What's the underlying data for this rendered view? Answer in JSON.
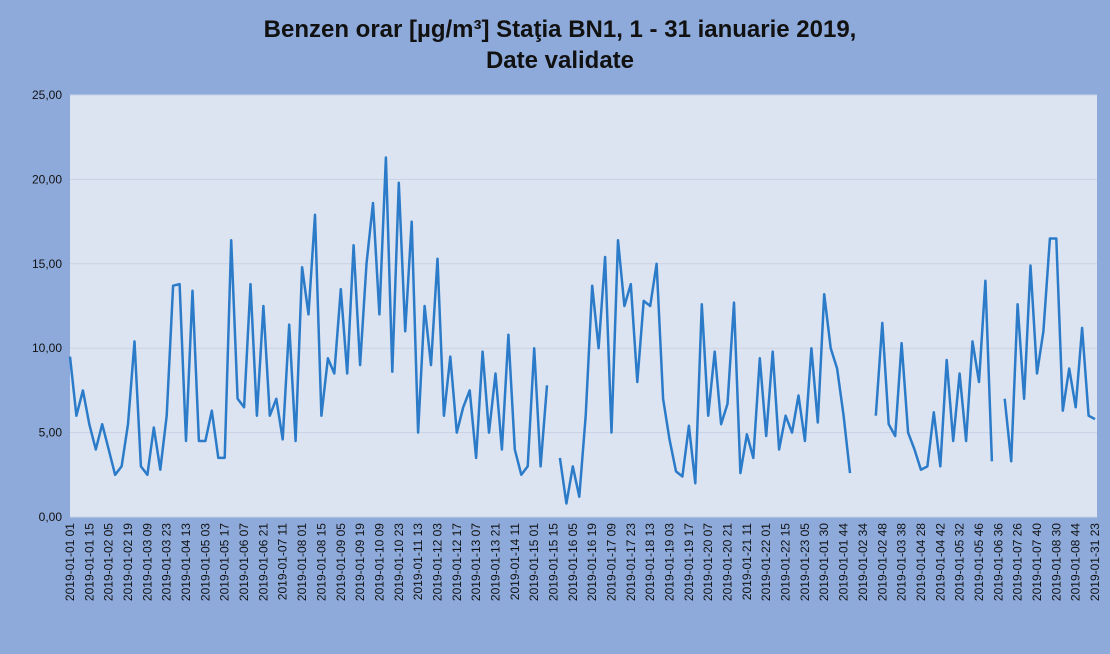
{
  "chart_data": {
    "type": "line",
    "title": [
      "Benzen orar [µg/m³]  Staţia BN1, 1 - 31 ianuarie 2019,",
      "Date validate"
    ],
    "categories": [
      "2019-01-01 01",
      null,
      null,
      "2019-01-01 15",
      null,
      null,
      "2019-01-02 05",
      null,
      null,
      "2019-01-02 19",
      null,
      null,
      "2019-01-03 09",
      null,
      null,
      "2019-01-03 23",
      null,
      null,
      "2019-01-04 13",
      null,
      null,
      "2019-01-05 03",
      null,
      null,
      "2019-01-05 17",
      null,
      null,
      "2019-01-06 07",
      null,
      null,
      "2019-01-06 21",
      null,
      null,
      "2019-01-07 11",
      null,
      null,
      "2019-01-08 01",
      null,
      null,
      "2019-01-08 15",
      null,
      null,
      "2019-01-09 05",
      null,
      null,
      "2019-01-09 19",
      null,
      null,
      "2019-01-10 09",
      null,
      null,
      "2019-01-10 23",
      null,
      null,
      "2019-01-11 13",
      null,
      null,
      "2019-01-12 03",
      null,
      null,
      "2019-01-12 17",
      null,
      null,
      "2019-01-13 07",
      null,
      null,
      "2019-01-13 21",
      null,
      null,
      "2019-01-14 11",
      null,
      null,
      "2019-01-15 01",
      null,
      null,
      "2019-01-15 15",
      null,
      null,
      "2019-01-16 05",
      null,
      null,
      "2019-01-16 19",
      null,
      null,
      "2019-01-17 09",
      null,
      null,
      "2019-01-17 23",
      null,
      null,
      "2019-01-18 13",
      null,
      null,
      "2019-01-19 03",
      null,
      null,
      "2019-01-19 17",
      null,
      null,
      "2019-01-20 07",
      null,
      null,
      "2019-01-20 21",
      null,
      null,
      "2019-01-21 11",
      null,
      null,
      "2019-01-22 01",
      null,
      null,
      "2019-01-22 15",
      null,
      null,
      "2019-01-23 05",
      null,
      null,
      "2019-01-01 30",
      null,
      null,
      "2019-01-01 44",
      null,
      null,
      "2019-01-02 34",
      null,
      null,
      "2019-01-02 48",
      null,
      null,
      "2019-01-03 38",
      null,
      null,
      "2019-01-04 28",
      null,
      null,
      "2019-01-04 42",
      null,
      null,
      "2019-01-05 32",
      null,
      null,
      "2019-01-05 46",
      null,
      null,
      "2019-01-06 36",
      null,
      null,
      "2019-01-07 26",
      null,
      null,
      "2019-01-07 40",
      null,
      null,
      "2019-01-08 30",
      null,
      null,
      "2019-01-08 44",
      null,
      null,
      "2019-01-31 23"
    ],
    "values": [
      9.5,
      6,
      7.5,
      5.5,
      4,
      5.5,
      4,
      2.5,
      3,
      5.5,
      10.4,
      3,
      2.5,
      5.3,
      2.8,
      6,
      13.7,
      13.8,
      4.5,
      13.4,
      4.5,
      4.5,
      6.3,
      3.5,
      3.5,
      16.4,
      7,
      6.5,
      13.8,
      6,
      12.5,
      6,
      7,
      4.6,
      11.4,
      4.5,
      14.8,
      12,
      17.9,
      6,
      9.4,
      8.5,
      13.5,
      8.5,
      16.1,
      9,
      15,
      18.6,
      12,
      21.3,
      8.6,
      19.8,
      11,
      17.5,
      5,
      12.5,
      9,
      15.3,
      6,
      9.5,
      5,
      6.5,
      7.5,
      3.5,
      9.8,
      5,
      8.5,
      4,
      10.8,
      4,
      2.5,
      3,
      10,
      3,
      7.8,
      null,
      3.5,
      0.8,
      3,
      1.2,
      6,
      13.7,
      10,
      15.4,
      5,
      16.4,
      12.5,
      13.8,
      8,
      12.8,
      12.5,
      15,
      7,
      4.6,
      2.7,
      2.4,
      5.4,
      2,
      12.6,
      6,
      9.8,
      5.5,
      6.7,
      12.7,
      2.6,
      4.9,
      3.5,
      9.4,
      4.8,
      9.8,
      4,
      6,
      5,
      7.2,
      4.5,
      10,
      5.6,
      13.2,
      10,
      8.8,
      6,
      2.6,
      null,
      null,
      null,
      6,
      11.5,
      5.5,
      4.8,
      10.3,
      5,
      4,
      2.8,
      3,
      6.2,
      3,
      9.3,
      4.5,
      8.5,
      4.5,
      10.4,
      8,
      14,
      3.3,
      null,
      7,
      3.3,
      12.6,
      7,
      14.9,
      8.5,
      11,
      16.5,
      16.5,
      6.3,
      8.8,
      6.5,
      11.2,
      6,
      5.8
    ],
    "color": "#2b7bc9",
    "ylim": [
      0,
      25
    ],
    "yticks": [
      {
        "value": 0,
        "label": "0,00"
      },
      {
        "value": 5,
        "label": "5,00"
      },
      {
        "value": 10,
        "label": "10,00"
      },
      {
        "value": 15,
        "label": "15,00"
      },
      {
        "value": 20,
        "label": "20,00"
      },
      {
        "value": 25,
        "label": "25,00"
      }
    ],
    "grid": true
  }
}
